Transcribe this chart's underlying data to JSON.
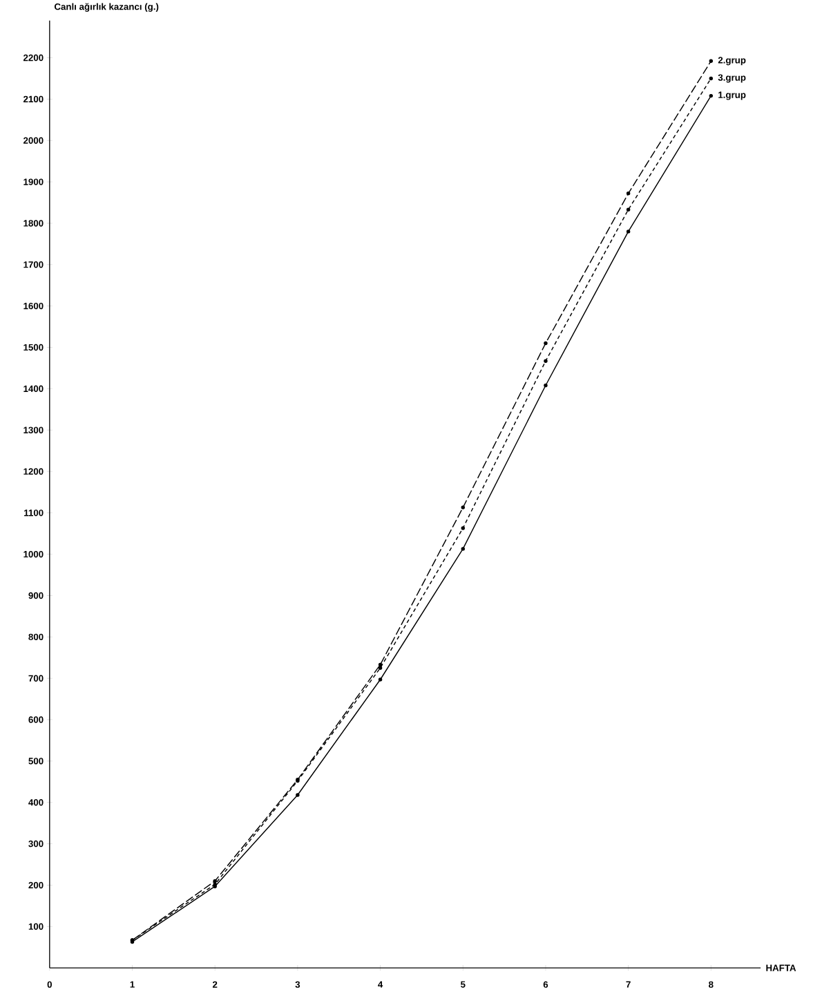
{
  "chart_data": {
    "type": "line",
    "xlabel": "HAFTA",
    "ylabel": "Canlı ağırlık kazancı (g.)",
    "x": [
      1,
      2,
      3,
      4,
      5,
      6,
      7,
      8
    ],
    "series": [
      {
        "name": "2.grup",
        "color": "#000000",
        "line_style": "dashed",
        "values": [
          67,
          210,
          455,
          733,
          1113,
          1510,
          1872,
          2192
        ]
      },
      {
        "name": "3.grup",
        "color": "#000000",
        "line_style": "dotted",
        "values": [
          67,
          202,
          452,
          725,
          1063,
          1467,
          1833,
          2150
        ]
      },
      {
        "name": "1.grup",
        "color": "#000000",
        "line_style": "solid",
        "values": [
          63,
          197,
          418,
          697,
          1013,
          1408,
          1780,
          2108
        ]
      }
    ],
    "xlim": [
      0,
      8.6
    ],
    "ylim": [
      0,
      2290
    ],
    "xticks": [
      0,
      1,
      2,
      3,
      4,
      5,
      6,
      7,
      8
    ],
    "yticks": [
      100,
      200,
      300,
      400,
      500,
      600,
      700,
      800,
      900,
      1000,
      1100,
      1200,
      1300,
      1400,
      1500,
      1600,
      1700,
      1800,
      1900,
      2000,
      2100,
      2200
    ],
    "marker": "circle"
  }
}
